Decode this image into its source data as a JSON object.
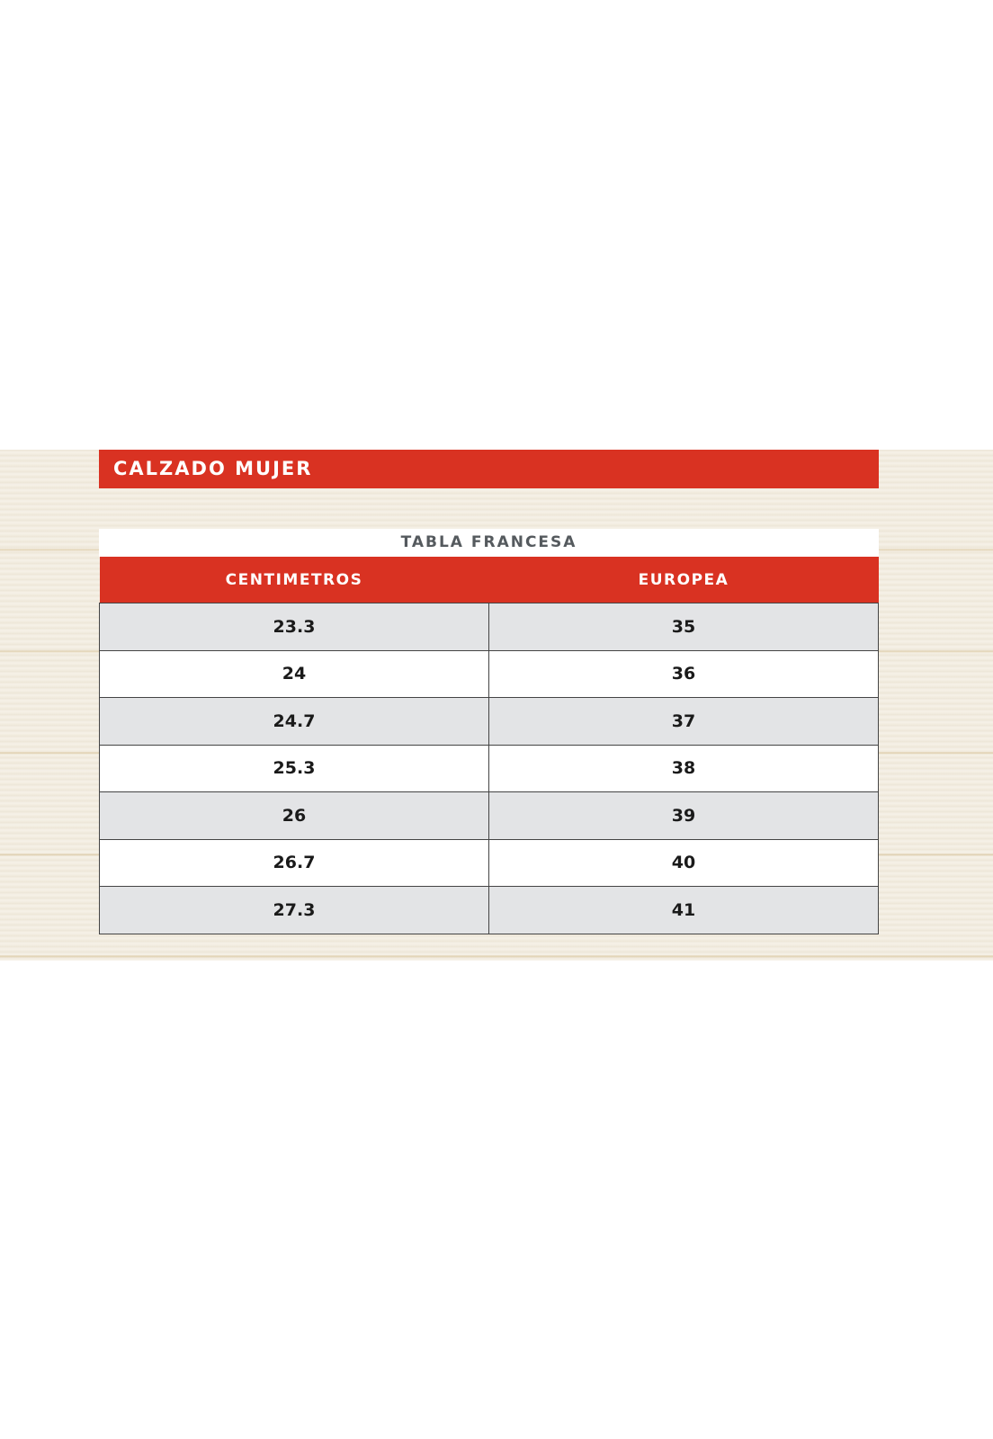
{
  "title": "CALZADO MUJER",
  "subtitle": "TABLA FRANCESA",
  "colors": {
    "accent": "#d93222",
    "stripe": "#e3e4e6"
  },
  "table": {
    "headers": [
      "CENTIMETROS",
      "EUROPEA"
    ],
    "rows": [
      [
        "23.3",
        "35"
      ],
      [
        "24",
        "36"
      ],
      [
        "24.7",
        "37"
      ],
      [
        "25.3",
        "38"
      ],
      [
        "26",
        "39"
      ],
      [
        "26.7",
        "40"
      ],
      [
        "27.3",
        "41"
      ]
    ]
  }
}
